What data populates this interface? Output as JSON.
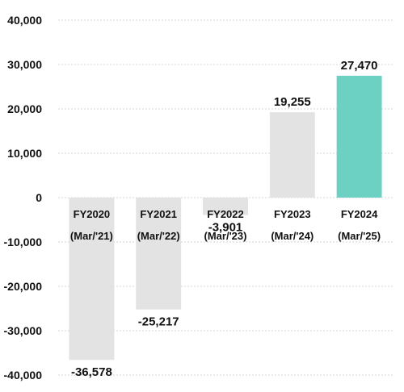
{
  "chart_data": {
    "type": "bar",
    "categories": [
      "FY2020",
      "FY2021",
      "FY2022",
      "FY2023",
      "FY2024"
    ],
    "category_sublabels": [
      "(Mar/'21)",
      "(Mar/'22)",
      "(Mar/'23)",
      "(Mar/'24)",
      "(Mar/'25)"
    ],
    "values": [
      -36578,
      -25217,
      -3901,
      19255,
      27470
    ],
    "data_labels": [
      "-36,578",
      "-25,217",
      "-3,901",
      "19,255",
      "27,470"
    ],
    "ylim": [
      -40000,
      40000
    ],
    "yticks": [
      40000,
      30000,
      20000,
      10000,
      0,
      -10000,
      -20000,
      -30000,
      -40000
    ],
    "ytick_labels": [
      "40,000",
      "30,000",
      "20,000",
      "10,000",
      "0",
      "-10,000",
      "-20,000",
      "-30,000",
      "-40,000"
    ],
    "grid": true,
    "colors": {
      "default_bar": "#e3e3e3",
      "highlight_bar": "#6cd1c2",
      "highlight_index": 4
    },
    "title": "",
    "xlabel": "",
    "ylabel": ""
  }
}
